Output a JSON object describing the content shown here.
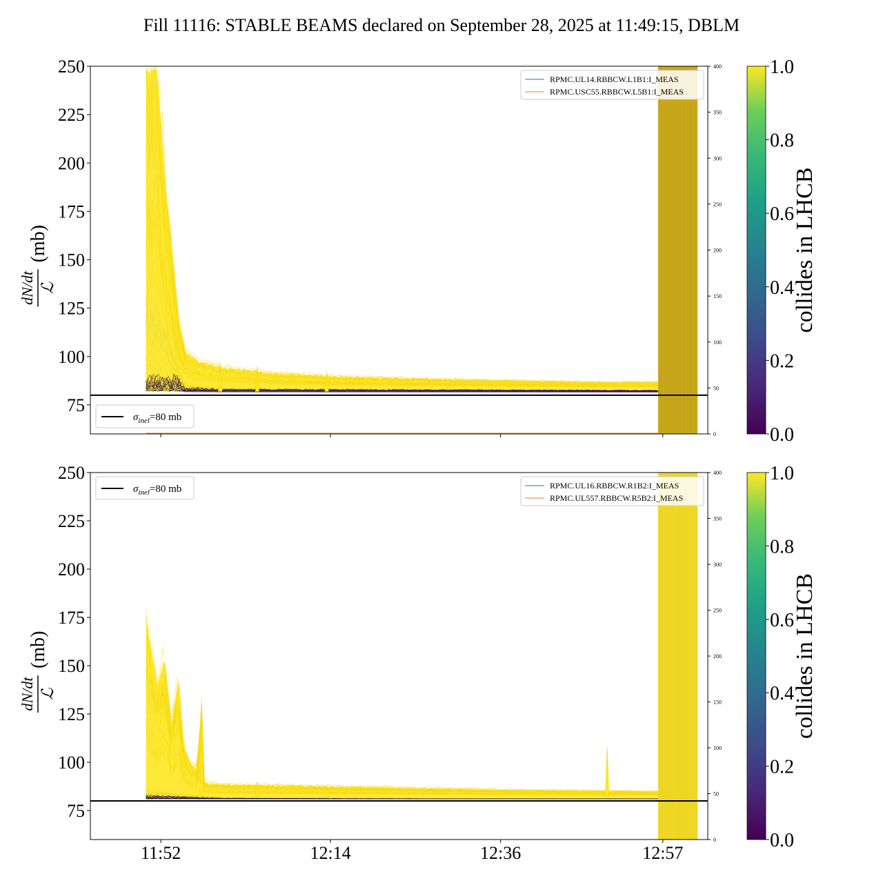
{
  "figure": {
    "title": "Fill 11116: STABLE BEAMS declared on September 28, 2025 at 11:49:15, DBLM"
  },
  "chart_data": [
    {
      "type": "line",
      "panel": "top",
      "ylabel_numerator": "dN/dt",
      "ylabel_denominator": "ℒ",
      "ylabel_unit": "(mb)",
      "ylim": [
        60,
        250
      ],
      "yticks": [
        "75",
        "100",
        "125",
        "150",
        "175",
        "200",
        "225",
        "250"
      ],
      "ytick_values": [
        75,
        100,
        125,
        150,
        175,
        200,
        225,
        250
      ],
      "y2lim": [
        0,
        400
      ],
      "y2ticks": [
        "0",
        "50",
        "100",
        "150",
        "200",
        "250",
        "300",
        "350",
        "400"
      ],
      "y2tick_values": [
        0,
        50,
        100,
        150,
        200,
        250,
        300,
        350,
        400
      ],
      "xticks": [],
      "reference_line": {
        "value": 80,
        "label_symbol": "σ",
        "label_sub": "inel",
        "label_rest": "=80 mb"
      },
      "legend": [
        {
          "name": "RPMC.UL14.RBBCW.L1B1:I_MEAS",
          "color": "#1f77b4"
        },
        {
          "name": "RPMC.USC55.RBBCW.L5B1:I_MEAS",
          "color": "#ff7f0e"
        }
      ],
      "colorbar": {
        "label": "collides in LHCB",
        "ticks": [
          "0.0",
          "0.2",
          "0.4",
          "0.6",
          "0.8",
          "1.0"
        ],
        "range": [
          0,
          1
        ]
      },
      "band_color": "#c9a91a",
      "envelope_collide": [
        [
          11.835,
          250
        ],
        [
          11.86,
          250
        ],
        [
          11.875,
          195
        ],
        [
          11.89,
          160
        ],
        [
          11.905,
          120
        ],
        [
          11.92,
          103
        ],
        [
          11.95,
          98
        ],
        [
          12.0,
          95
        ],
        [
          12.1,
          92
        ],
        [
          12.25,
          90
        ],
        [
          12.4,
          89
        ],
        [
          12.6,
          88
        ],
        [
          12.8,
          87
        ],
        [
          12.95,
          87
        ]
      ],
      "envelope_noncollide": [
        [
          11.835,
          140
        ],
        [
          11.86,
          130
        ],
        [
          11.88,
          120
        ],
        [
          11.9,
          100
        ],
        [
          11.92,
          86
        ],
        [
          12.0,
          84
        ],
        [
          12.3,
          83.5
        ],
        [
          12.6,
          83
        ],
        [
          12.95,
          82.5
        ]
      ],
      "spikes": [
        [
          11.995,
          97
        ],
        [
          12.075,
          95
        ],
        [
          12.225,
          92
        ]
      ]
    },
    {
      "type": "line",
      "panel": "bottom",
      "ylabel_numerator": "dN/dt",
      "ylabel_denominator": "ℒ",
      "ylabel_unit": "(mb)",
      "ylim": [
        60,
        250
      ],
      "yticks": [
        "75",
        "100",
        "125",
        "150",
        "175",
        "200",
        "225",
        "250"
      ],
      "ytick_values": [
        75,
        100,
        125,
        150,
        175,
        200,
        225,
        250
      ],
      "y2lim": [
        0,
        400
      ],
      "y2ticks": [
        "0",
        "50",
        "100",
        "150",
        "200",
        "250",
        "300",
        "350",
        "400"
      ],
      "y2tick_values": [
        0,
        50,
        100,
        150,
        200,
        250,
        300,
        350,
        400
      ],
      "xticks": [
        "11:52",
        "12:14",
        "12:36",
        "12:57"
      ],
      "xtick_values": [
        11.867,
        12.233,
        12.6,
        12.95
      ],
      "reference_line": {
        "value": 80,
        "label_symbol": "σ",
        "label_sub": "inel",
        "label_rest": "=80 mb"
      },
      "legend": [
        {
          "name": "RPMC.UL16.RBBCW.R1B2:I_MEAS",
          "color": "#1f77b4"
        },
        {
          "name": "RPMC.UL557.RBBCW.R5B2:I_MEAS",
          "color": "#ff7f0e"
        }
      ],
      "colorbar": {
        "label": "collides in LHCB",
        "ticks": [
          "0.0",
          "0.2",
          "0.4",
          "0.6",
          "0.8",
          "1.0"
        ],
        "range": [
          0,
          1
        ]
      },
      "band_color": "#f0d824",
      "envelope_collide": [
        [
          11.835,
          175
        ],
        [
          11.86,
          140
        ],
        [
          11.875,
          155
        ],
        [
          11.89,
          120
        ],
        [
          11.905,
          145
        ],
        [
          11.915,
          110
        ],
        [
          11.93,
          100
        ],
        [
          11.945,
          97
        ],
        [
          11.955,
          130
        ],
        [
          11.96,
          90
        ],
        [
          12.0,
          89
        ],
        [
          12.2,
          88
        ],
        [
          12.4,
          87
        ],
        [
          12.6,
          86
        ],
        [
          12.8,
          85.5
        ],
        [
          12.95,
          85
        ]
      ],
      "envelope_noncollide": [
        [
          11.835,
          86
        ],
        [
          11.9,
          84
        ],
        [
          12.0,
          82
        ],
        [
          12.3,
          81.5
        ],
        [
          12.95,
          81
        ]
      ],
      "spikes": [
        [
          11.955,
          130
        ],
        [
          12.075,
          90
        ],
        [
          12.225,
          88
        ],
        [
          12.83,
          108
        ]
      ]
    }
  ],
  "x_axis": {
    "xlim": [
      11.715,
      13.047
    ]
  },
  "time_window": {
    "band_start": 12.94,
    "band_end": 13.025
  }
}
